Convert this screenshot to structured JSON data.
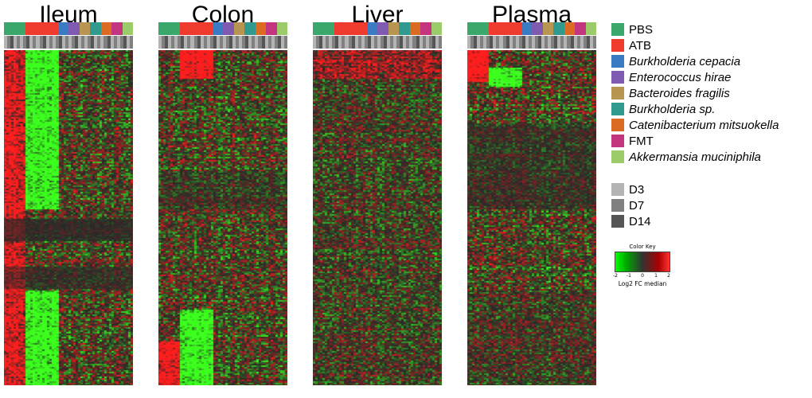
{
  "chart_data": {
    "type": "heatmap",
    "panels": [
      {
        "title": "Ileum"
      },
      {
        "title": "Colon"
      },
      {
        "title": "Liver"
      },
      {
        "title": "Plasma"
      }
    ],
    "groups": [
      {
        "name": "PBS",
        "color": "#3aa86b",
        "italic": false
      },
      {
        "name": "ATB",
        "color": "#ee3b2e",
        "italic": false
      },
      {
        "name": "Burkholderia cepacia",
        "color": "#3b7bc4",
        "italic": true
      },
      {
        "name": "Enterococcus hirae",
        "color": "#7e5bb0",
        "italic": true
      },
      {
        "name": "Bacteroides fragilis",
        "color": "#b99552",
        "italic": true
      },
      {
        "name": "Burkholderia sp.",
        "color": "#319a8e",
        "italic": true
      },
      {
        "name": "Catenibacterium mitsuokella",
        "color": "#db6a23",
        "italic": true
      },
      {
        "name": "FMT",
        "color": "#c3357f",
        "italic": false
      },
      {
        "name": "Akkermansia muciniphila",
        "color": "#9ccc6a",
        "italic": true
      }
    ],
    "group_widths": [
      2,
      3,
      1,
      1,
      1,
      1,
      1,
      1,
      1
    ],
    "days": [
      {
        "name": "D3",
        "color": "#b4b4b4"
      },
      {
        "name": "D7",
        "color": "#808080"
      },
      {
        "name": "D14",
        "color": "#555555"
      }
    ],
    "color_key": {
      "title": "Color Key",
      "label": "Log2 FC median",
      "ticks": [
        "-2",
        "-1",
        "0",
        "1",
        "2"
      ],
      "range": [
        -2,
        2
      ],
      "low_color": "#00ff00",
      "mid_color": "#333333",
      "high_color": "#ff3333"
    }
  }
}
